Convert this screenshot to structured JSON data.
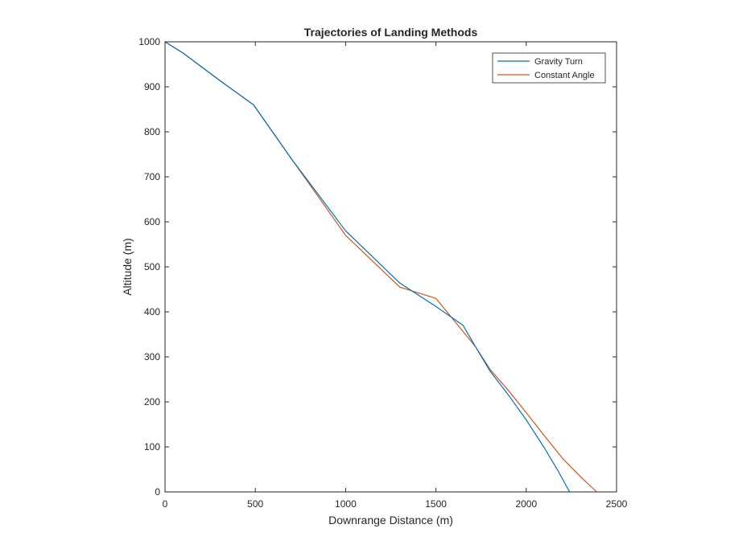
{
  "chart_data": {
    "type": "line",
    "title": "Trajectories of Landing Methods",
    "xlabel": "Downrange Distance (m)",
    "ylabel": "Altitude (m)",
    "xlim": [
      0,
      2500
    ],
    "ylim": [
      0,
      1000
    ],
    "xticks": [
      "0",
      "500",
      "1000",
      "1500",
      "2000",
      "2500"
    ],
    "yticks": [
      "0",
      "100",
      "200",
      "300",
      "400",
      "500",
      "600",
      "700",
      "800",
      "900",
      "1000"
    ],
    "grid": false,
    "legend_position": "top-right",
    "series": [
      {
        "name": "Gravity Turn",
        "color": "#0072BD",
        "x": [
          0,
          100,
          300,
          490,
          700,
          1000,
          1300,
          1500,
          1650,
          1720,
          1800,
          1900,
          2000,
          2100,
          2180,
          2240
        ],
        "y": [
          1000,
          975,
          915,
          860,
          740,
          580,
          464,
          412,
          370,
          322,
          268,
          216,
          160,
          98,
          44,
          0
        ]
      },
      {
        "name": "Constant Angle",
        "color": "#D95319",
        "x": [
          0,
          100,
          300,
          490,
          700,
          1000,
          1300,
          1500,
          1720,
          1800,
          1900,
          2000,
          2100,
          2200,
          2300,
          2390
        ],
        "y": [
          1000,
          975,
          915,
          860,
          740,
          570,
          455,
          430,
          322,
          272,
          226,
          176,
          125,
          75,
          34,
          0
        ]
      }
    ]
  }
}
